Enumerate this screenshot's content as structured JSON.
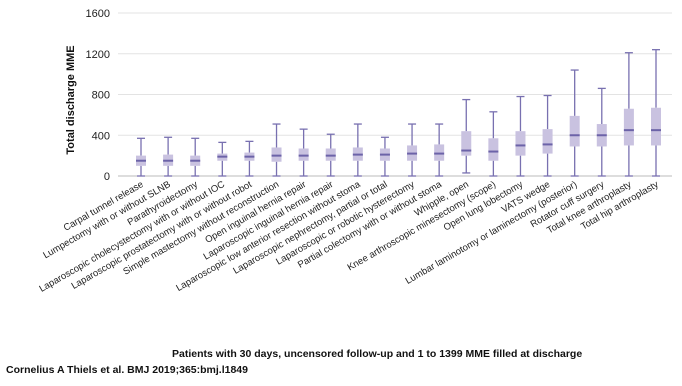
{
  "chart_data": {
    "type": "box",
    "ylabel": "Total discharge MME",
    "xlabel": "Patients with 30 days, uncensored follow-up and 1 to 1399 MME filled at discharge",
    "ylim": [
      0,
      1600
    ],
    "yticks": [
      0,
      400,
      800,
      1200,
      1600
    ],
    "grid": true,
    "categories": [
      "Carpal tunnel release",
      "Lumpectomy with or without SLNB",
      "Parathyroidectomy",
      "Laparoscopic cholecystectomy with or without IOC",
      "Laparoscopic prostatectomy with or without robot",
      "Simple mastectomy without reconstruction",
      "Open inguinal hernia repair",
      "Laparoscopic inguinal hernia repair",
      "Laparoscopic low anterior resection without stoma",
      "Laparoscopic nephrectomy, partial or total",
      "Laparoscopic or robotic hysterectomy",
      "Partial colectomy with or without stoma",
      "Whipple, open",
      "Knee arthroscopic minesectomy (scope)",
      "Open lung lobectomy",
      "VATS wedge",
      "Lumbar laminotomy or laminectomy (posterior)",
      "Rotator cuff surgery",
      "Total knee arthroplasty",
      "Total hip arthroplasty"
    ],
    "boxes": [
      {
        "min": 0,
        "q1": 100,
        "median": 150,
        "q3": 200,
        "max": 370
      },
      {
        "min": 0,
        "q1": 100,
        "median": 150,
        "q3": 210,
        "max": 380
      },
      {
        "min": 0,
        "q1": 100,
        "median": 150,
        "q3": 200,
        "max": 370
      },
      {
        "min": 0,
        "q1": 150,
        "median": 190,
        "q3": 220,
        "max": 330
      },
      {
        "min": 0,
        "q1": 150,
        "median": 190,
        "q3": 230,
        "max": 340
      },
      {
        "min": 0,
        "q1": 140,
        "median": 200,
        "q3": 280,
        "max": 510
      },
      {
        "min": 0,
        "q1": 150,
        "median": 200,
        "q3": 270,
        "max": 460
      },
      {
        "min": 0,
        "q1": 150,
        "median": 200,
        "q3": 270,
        "max": 410
      },
      {
        "min": 0,
        "q1": 150,
        "median": 210,
        "q3": 280,
        "max": 510
      },
      {
        "min": 0,
        "q1": 150,
        "median": 210,
        "q3": 270,
        "max": 380
      },
      {
        "min": 0,
        "q1": 150,
        "median": 220,
        "q3": 300,
        "max": 510
      },
      {
        "min": 0,
        "q1": 150,
        "median": 220,
        "q3": 310,
        "max": 510
      },
      {
        "min": 30,
        "q1": 200,
        "median": 250,
        "q3": 440,
        "max": 750
      },
      {
        "min": 0,
        "q1": 150,
        "median": 240,
        "q3": 370,
        "max": 630
      },
      {
        "min": 0,
        "q1": 200,
        "median": 300,
        "q3": 440,
        "max": 780
      },
      {
        "min": 0,
        "q1": 220,
        "median": 310,
        "q3": 460,
        "max": 790
      },
      {
        "min": 0,
        "q1": 290,
        "median": 400,
        "q3": 590,
        "max": 1040
      },
      {
        "min": 0,
        "q1": 290,
        "median": 400,
        "q3": 510,
        "max": 860
      },
      {
        "min": 0,
        "q1": 300,
        "median": 450,
        "q3": 660,
        "max": 1210
      },
      {
        "min": 0,
        "q1": 300,
        "median": 450,
        "q3": 670,
        "max": 1240
      }
    ],
    "box_color": "#c9c2e0",
    "median_color": "#6c63a8",
    "whisker_color": "#7870b0"
  },
  "credit": "Cornelius A Thiels et al. BMJ 2019;365:bmj.l1849"
}
